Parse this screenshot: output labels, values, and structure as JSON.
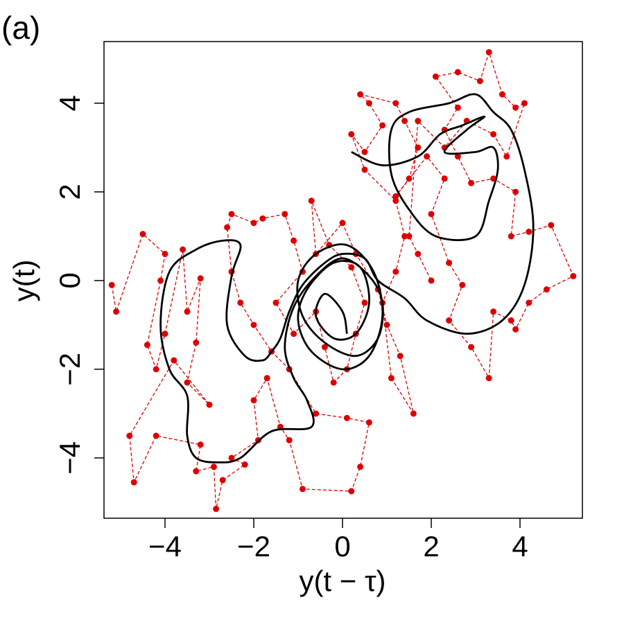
{
  "chart_data": {
    "type": "scatter",
    "title": "(a)",
    "x_label": "y(t − τ)",
    "y_label": "y(t)",
    "xlim": [
      -5.375,
      5.406
    ],
    "ylim": [
      -5.36,
      5.39
    ],
    "xticks": [
      {
        "value": -4,
        "label": "−4"
      },
      {
        "value": -2,
        "label": "−2"
      },
      0,
      2,
      4
    ],
    "yticks": [
      {
        "value": -4,
        "label": "−4"
      },
      {
        "value": -2,
        "label": "−2"
      },
      0,
      2,
      4
    ],
    "series": [
      {
        "color": "#dd0000",
        "style": "dashed-points",
        "x": [
          -5.2,
          -5.1,
          -4.5,
          -4.0,
          -4.1,
          -4.4,
          -4.2,
          -4.0,
          -3.6,
          -3.5,
          -3.2,
          -3.3,
          -3.5,
          -3.0,
          -3.8,
          -4.8,
          -4.7,
          -4.2,
          -3.2,
          -3.3,
          -2.9,
          -2.85,
          -2.7,
          -2.2,
          -2.5,
          -1.9,
          -2.0,
          -1.7,
          -1.4,
          -1.2,
          -0.9,
          0.2,
          0.4,
          0.6,
          0.1,
          -0.6,
          -1.2,
          -1.6,
          -2.0,
          -2.3,
          -2.5,
          -2.6,
          -2.5,
          -2.0,
          -1.8,
          -1.3,
          -1.1,
          -0.9,
          -1.5,
          -1.1,
          -0.6,
          -0.4,
          -0.2,
          0.1,
          0.3,
          0.5,
          0.2,
          -0.3,
          -0.7,
          -0.6,
          0.0,
          0.3,
          0.8,
          1.0,
          1.3,
          1.6,
          1.1,
          0.9,
          1.2,
          1.4,
          1.2,
          0.5,
          0.2,
          0.5,
          0.9,
          0.6,
          0.4,
          1.2,
          1.4,
          1.7,
          1.5,
          1.2,
          1.9,
          2.3,
          2.0,
          2.4,
          2.7,
          2.4,
          2.9,
          3.3,
          3.4,
          3.8,
          3.9,
          4.2,
          4.6,
          5.2,
          4.7,
          4.2,
          3.8,
          3.9,
          3.4,
          2.9,
          2.6,
          2.3,
          2.6,
          2.1,
          2.6,
          3.1,
          3.3,
          3.6,
          3.9,
          4.1,
          3.7,
          3.4,
          2.8,
          2.3,
          1.7,
          1.5,
          1.7,
          2.0
        ],
        "values": [
          -0.1,
          -0.7,
          1.05,
          0.6,
          0.0,
          -1.45,
          -2.0,
          -1.2,
          0.7,
          -0.7,
          0.05,
          -1.4,
          -2.3,
          -2.8,
          -1.8,
          -3.5,
          -4.55,
          -3.5,
          -3.7,
          -4.3,
          -4.2,
          -5.15,
          -4.5,
          -4.15,
          -4.0,
          -3.6,
          -2.7,
          -2.2,
          -3.3,
          -3.6,
          -4.7,
          -4.75,
          -4.2,
          -3.2,
          -3.1,
          -3.0,
          -2.0,
          -1.6,
          -1.0,
          -0.5,
          0.2,
          1.2,
          1.5,
          1.3,
          1.4,
          1.5,
          0.9,
          0.2,
          -0.5,
          -1.2,
          -0.7,
          -1.5,
          -2.3,
          -2.0,
          -1.2,
          -0.5,
          0.3,
          0.8,
          1.8,
          0.6,
          1.3,
          0.6,
          -0.2,
          -1.0,
          -1.7,
          -3.0,
          -2.2,
          -0.5,
          0.2,
          1.0,
          1.8,
          2.5,
          3.3,
          2.9,
          3.5,
          4.0,
          4.2,
          4.0,
          3.6,
          3.0,
          2.3,
          1.9,
          2.8,
          2.3,
          1.5,
          0.4,
          -0.1,
          -0.9,
          -1.5,
          -2.2,
          -0.7,
          -0.9,
          -1.1,
          -0.5,
          -0.2,
          0.1,
          1.25,
          1.1,
          1.0,
          2.0,
          2.3,
          2.2,
          2.8,
          3.4,
          3.9,
          4.6,
          4.7,
          4.5,
          5.15,
          4.2,
          3.9,
          4.0,
          2.8,
          3.3,
          3.6,
          3.0,
          3.6,
          1.0,
          0.6,
          0.0
        ]
      },
      {
        "color": "#000000",
        "style": "solid",
        "x": [
          0.2,
          0.9,
          1.7,
          2.2,
          2.7,
          3.2,
          2.8,
          2.3,
          3.0,
          3.4,
          3.5,
          3.3,
          3.0,
          2.1,
          1.5,
          1.1,
          1.1,
          1.5,
          2.4,
          3.0,
          3.4,
          3.8,
          4.1,
          4.3,
          4.1,
          3.6,
          2.8,
          1.9,
          1.4,
          0.8,
          0.5,
          0.0,
          -0.4,
          -0.9,
          -1.2,
          -1.4,
          -1.6,
          -1.8,
          -2.2,
          -2.6,
          -2.5,
          -2.3,
          -2.7,
          -3.3,
          -3.9,
          -4.1,
          -3.9,
          -3.5,
          -3.5,
          -3.3,
          -2.8,
          -2.3,
          -1.6,
          -0.7,
          -0.8,
          -1.1,
          -1.3,
          -1.1,
          -0.6,
          0.0,
          0.6,
          0.9,
          0.8,
          0.3,
          -0.4,
          -0.9,
          -1.0,
          -0.6,
          0.1,
          0.7,
          0.9,
          0.6,
          0.0,
          -0.7,
          -1.0,
          -0.8,
          -0.2,
          0.4,
          0.6,
          0.3,
          -0.2,
          -0.6,
          -0.4,
          0.0,
          0.1
        ],
        "values": [
          2.9,
          2.6,
          2.8,
          3.3,
          3.5,
          3.7,
          3.4,
          2.9,
          2.9,
          3.0,
          2.5,
          1.8,
          1.0,
          1.0,
          1.6,
          2.4,
          3.4,
          3.8,
          4.0,
          4.2,
          3.8,
          3.4,
          2.5,
          1.2,
          -0.1,
          -0.9,
          -1.2,
          -0.9,
          -0.4,
          0.0,
          0.5,
          0.6,
          0.4,
          -0.1,
          -0.7,
          -1.3,
          -1.6,
          -1.8,
          -1.7,
          -1.0,
          0.1,
          0.8,
          0.9,
          0.7,
          0.2,
          -1.0,
          -2.0,
          -2.6,
          -3.5,
          -4.0,
          -4.1,
          -4.0,
          -3.4,
          -3.3,
          -2.7,
          -2.2,
          -1.5,
          -0.6,
          0.1,
          0.5,
          0.1,
          -0.5,
          -1.3,
          -1.7,
          -1.4,
          -0.8,
          0.0,
          0.6,
          0.8,
          0.2,
          -0.8,
          -1.7,
          -2.0,
          -1.6,
          -0.9,
          -0.2,
          0.4,
          0.3,
          -0.5,
          -1.2,
          -1.3,
          -0.8,
          -0.3,
          -0.7,
          -1.2
        ]
      }
    ]
  }
}
